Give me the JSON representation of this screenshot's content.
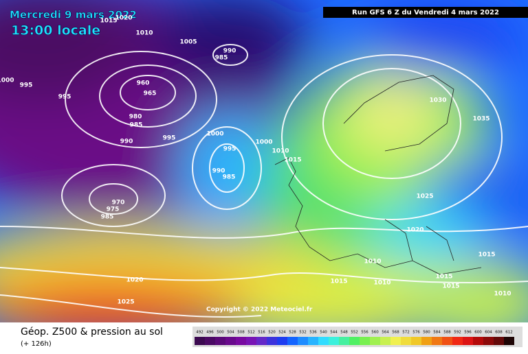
{
  "header": {
    "date": "Mercredi 9 mars 2022",
    "time": "13:00 locale",
    "run": "Run GFS 6 Z du Vendredi 4 mars 2022"
  },
  "footer": {
    "title": "Géop. Z500 & pression au sol",
    "lead": "(+ 126h)",
    "copyright": "Copyright © 2022 Meteociel.fr"
  },
  "isobar_labels": [
    "1020",
    "1015",
    "1010",
    "1005",
    "990",
    "985",
    "995",
    "995",
    "960",
    "965",
    "980",
    "985",
    "990",
    "995",
    "1000",
    "995",
    "990",
    "985",
    "1000",
    "1010",
    "1015",
    "970",
    "975",
    "985",
    "1030",
    "1035",
    "1025",
    "1020",
    "1010",
    "1015",
    "1015",
    "1010",
    "1015",
    "1015",
    "1010",
    "1020",
    "1025",
    "1000"
  ],
  "legend": {
    "values": [
      492,
      496,
      500,
      504,
      508,
      512,
      516,
      520,
      524,
      528,
      532,
      536,
      540,
      544,
      548,
      552,
      556,
      560,
      564,
      568,
      572,
      576,
      580,
      584,
      588,
      592,
      596,
      600,
      604,
      608,
      612
    ],
    "colors": [
      "#3c0a50",
      "#4b0a64",
      "#5a0a78",
      "#690a8c",
      "#780aa0",
      "#7814b4",
      "#6428c8",
      "#3c32dc",
      "#1e3cf0",
      "#1464ff",
      "#1e8cff",
      "#28b4ff",
      "#32dcff",
      "#3cf0dc",
      "#46f0a0",
      "#50f064",
      "#78f050",
      "#a0f050",
      "#c8f050",
      "#f0f050",
      "#f0dc3c",
      "#f0c828",
      "#f0a014",
      "#f07814",
      "#f05014",
      "#f02814",
      "#dc1414",
      "#b40a0a",
      "#8c0a0a",
      "#640a0a",
      "#1e0505"
    ]
  }
}
